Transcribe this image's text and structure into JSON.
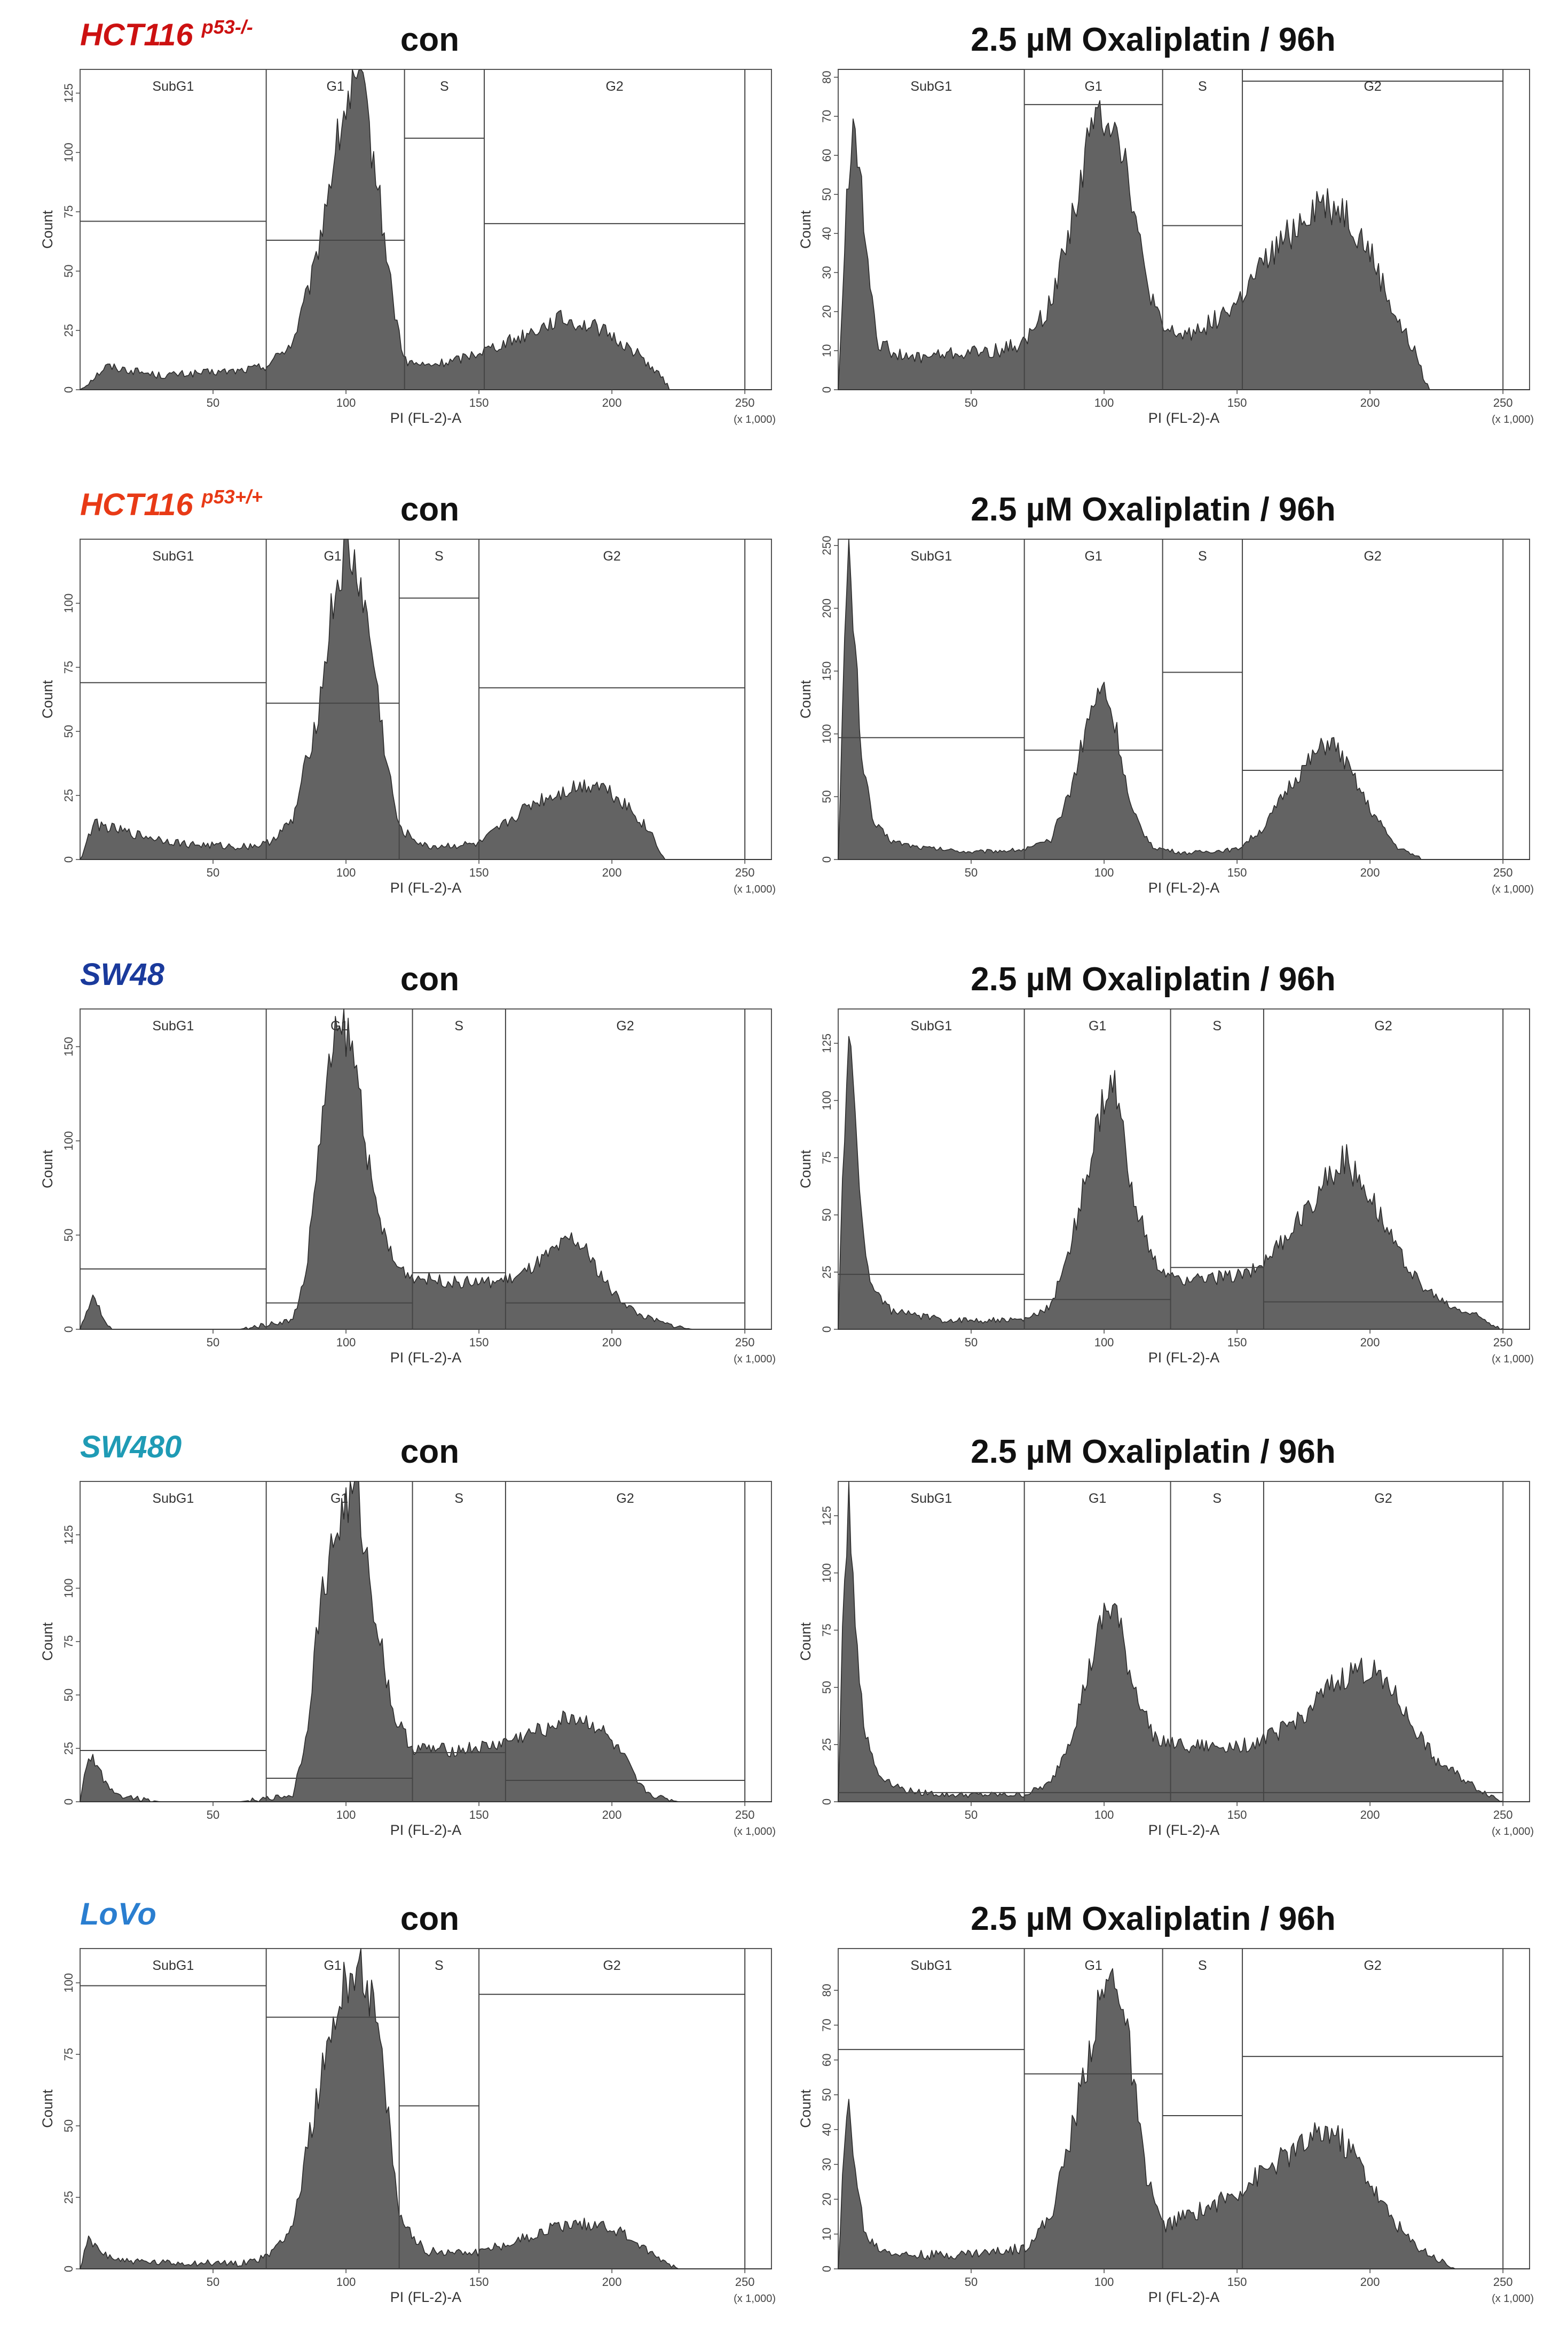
{
  "figure": {
    "title_con": "con",
    "title_treated": "2.5 µM Oxaliplatin / 96h",
    "x_axis_label": "PI (FL-2)-A",
    "y_axis_label": "Count",
    "x_scale_note": "(x 1,000)",
    "gate_labels": [
      "SubG1",
      "G1",
      "S",
      "G2"
    ],
    "histogram_fill": "#636363",
    "gate_line_color": "#444444",
    "rows": [
      {
        "name": "HCT116",
        "superscript": "p53-/-",
        "color": "#cc1111"
      },
      {
        "name": "HCT116",
        "superscript": "p53+/+",
        "color": "#e83a16"
      },
      {
        "name": "SW48",
        "superscript": "",
        "color": "#1a3a9c"
      },
      {
        "name": "SW480",
        "superscript": "",
        "color": "#1f9bb5"
      },
      {
        "name": "LoVo",
        "superscript": "",
        "color": "#2a7ed0"
      }
    ]
  },
  "chart_data": [
    {
      "type": "histogram",
      "row": 0,
      "condition": "con",
      "xlabel": "PI (FL-2)-A",
      "ylabel": "Count",
      "xlim": [
        0,
        260
      ],
      "ylim": [
        0,
        135
      ],
      "x_ticks": [
        50,
        100,
        150,
        200,
        250
      ],
      "y_ticks": [
        0,
        25,
        50,
        75,
        100,
        125
      ],
      "gates": [
        {
          "label": "SubG1",
          "x_range": [
            0,
            70
          ],
          "percent_level": 71
        },
        {
          "label": "G1",
          "x_range": [
            70,
            122
          ],
          "percent_level": 63
        },
        {
          "label": "S",
          "x_range": [
            122,
            152
          ],
          "percent_level": 106
        },
        {
          "label": "G2",
          "x_range": [
            152,
            250
          ],
          "percent_level": 70
        }
      ],
      "profile_x": [
        0,
        10,
        30,
        60,
        70,
        80,
        88,
        95,
        100,
        105,
        108,
        112,
        118,
        122,
        130,
        140,
        150,
        165,
        180,
        195,
        210,
        218,
        222,
        260
      ],
      "profile_y": [
        0,
        10,
        6,
        8,
        10,
        20,
        50,
        95,
        120,
        130,
        115,
        85,
        35,
        12,
        10,
        12,
        16,
        22,
        30,
        26,
        15,
        6,
        0,
        0
      ]
    },
    {
      "type": "histogram",
      "row": 0,
      "condition": "2.5 µM Oxaliplatin / 96h",
      "xlabel": "PI (FL-2)-A",
      "ylabel": "Count",
      "xlim": [
        0,
        260
      ],
      "ylim": [
        0,
        82
      ],
      "x_ticks": [
        50,
        100,
        150,
        200,
        250
      ],
      "y_ticks": [
        0,
        10,
        20,
        30,
        40,
        50,
        60,
        70,
        80
      ],
      "gates": [
        {
          "label": "SubG1",
          "x_range": [
            0,
            70
          ],
          "percent_level": 82
        },
        {
          "label": "G1",
          "x_range": [
            70,
            122
          ],
          "percent_level": 73
        },
        {
          "label": "S",
          "x_range": [
            122,
            152
          ],
          "percent_level": 42
        },
        {
          "label": "G2",
          "x_range": [
            152,
            250
          ],
          "percent_level": 79
        }
      ],
      "profile_x": [
        0,
        3,
        6,
        10,
        15,
        25,
        40,
        60,
        70,
        80,
        90,
        95,
        100,
        105,
        110,
        115,
        122,
        130,
        140,
        150,
        160,
        170,
        180,
        190,
        200,
        210,
        218,
        222,
        260
      ],
      "profile_y": [
        0,
        45,
        72,
        40,
        12,
        8,
        9,
        10,
        12,
        22,
        50,
        66,
        72,
        68,
        52,
        30,
        15,
        14,
        17,
        22,
        32,
        40,
        48,
        46,
        35,
        18,
        8,
        0,
        0
      ]
    },
    {
      "type": "histogram",
      "row": 1,
      "condition": "con",
      "xlabel": "PI (FL-2)-A",
      "ylabel": "Count",
      "xlim": [
        0,
        260
      ],
      "ylim": [
        0,
        125
      ],
      "x_ticks": [
        50,
        100,
        150,
        200,
        250
      ],
      "y_ticks": [
        0,
        25,
        50,
        75,
        100
      ],
      "gates": [
        {
          "label": "SubG1",
          "x_range": [
            0,
            70
          ],
          "percent_level": 69
        },
        {
          "label": "G1",
          "x_range": [
            70,
            120
          ],
          "percent_level": 61
        },
        {
          "label": "S",
          "x_range": [
            120,
            150
          ],
          "percent_level": 102
        },
        {
          "label": "G2",
          "x_range": [
            150,
            250
          ],
          "percent_level": 67
        }
      ],
      "profile_x": [
        0,
        5,
        20,
        40,
        60,
        70,
        80,
        90,
        95,
        100,
        105,
        110,
        115,
        120,
        130,
        150,
        160,
        170,
        185,
        195,
        205,
        215,
        220,
        260
      ],
      "profile_y": [
        0,
        14,
        10,
        6,
        5,
        6,
        15,
        60,
        100,
        120,
        110,
        80,
        40,
        12,
        5,
        6,
        14,
        22,
        28,
        30,
        22,
        10,
        0,
        0
      ]
    },
    {
      "type": "histogram",
      "row": 1,
      "condition": "2.5 µM Oxaliplatin / 96h",
      "xlabel": "PI (FL-2)-A",
      "ylabel": "Count",
      "xlim": [
        0,
        260
      ],
      "ylim": [
        0,
        255
      ],
      "x_ticks": [
        50,
        100,
        150,
        200,
        250
      ],
      "y_ticks": [
        0,
        50,
        100,
        150,
        200,
        250
      ],
      "gates": [
        {
          "label": "SubG1",
          "x_range": [
            0,
            70
          ],
          "percent_level": 97
        },
        {
          "label": "G1",
          "x_range": [
            70,
            122
          ],
          "percent_level": 87
        },
        {
          "label": "S",
          "x_range": [
            122,
            152
          ],
          "percent_level": 149
        },
        {
          "label": "G2",
          "x_range": [
            152,
            250
          ],
          "percent_level": 71
        }
      ],
      "profile_x": [
        0,
        2,
        4,
        6,
        9,
        13,
        20,
        30,
        50,
        70,
        80,
        88,
        95,
        100,
        105,
        110,
        118,
        130,
        150,
        160,
        170,
        180,
        185,
        190,
        200,
        210,
        220,
        260
      ],
      "profile_y": [
        0,
        150,
        245,
        180,
        80,
        30,
        15,
        10,
        6,
        8,
        15,
        60,
        120,
        138,
        100,
        40,
        10,
        5,
        8,
        25,
        60,
        85,
        95,
        80,
        40,
        10,
        0,
        0
      ]
    },
    {
      "type": "histogram",
      "row": 2,
      "condition": "con",
      "xlabel": "PI (FL-2)-A",
      "ylabel": "Count",
      "xlim": [
        0,
        260
      ],
      "ylim": [
        0,
        170
      ],
      "x_ticks": [
        50,
        100,
        150,
        200,
        250
      ],
      "y_ticks": [
        0,
        50,
        100,
        150
      ],
      "gates": [
        {
          "label": "SubG1",
          "x_range": [
            0,
            70
          ],
          "percent_level": 32
        },
        {
          "label": "G1",
          "x_range": [
            70,
            125
          ],
          "percent_level": 14
        },
        {
          "label": "S",
          "x_range": [
            125,
            160
          ],
          "percent_level": 30
        },
        {
          "label": "G2",
          "x_range": [
            160,
            250
          ],
          "percent_level": 14
        }
      ],
      "profile_x": [
        0,
        3,
        5,
        7,
        9,
        12,
        20,
        60,
        80,
        85,
        90,
        95,
        100,
        105,
        110,
        118,
        125,
        140,
        155,
        165,
        175,
        185,
        190,
        200,
        210,
        220,
        230,
        260
      ],
      "profile_y": [
        0,
        10,
        18,
        12,
        4,
        0,
        0,
        0,
        5,
        30,
        100,
        150,
        160,
        130,
        70,
        35,
        28,
        25,
        25,
        28,
        38,
        48,
        42,
        20,
        8,
        3,
        0,
        0
      ]
    },
    {
      "type": "histogram",
      "row": 2,
      "condition": "2.5 µM Oxaliplatin / 96h",
      "xlabel": "PI (FL-2)-A",
      "ylabel": "Count",
      "xlim": [
        0,
        260
      ],
      "ylim": [
        0,
        140
      ],
      "x_ticks": [
        50,
        100,
        150,
        200,
        250
      ],
      "y_ticks": [
        0,
        25,
        50,
        75,
        100,
        125
      ],
      "gates": [
        {
          "label": "SubG1",
          "x_range": [
            0,
            70
          ],
          "percent_level": 24
        },
        {
          "label": "G1",
          "x_range": [
            70,
            125
          ],
          "percent_level": 13
        },
        {
          "label": "S",
          "x_range": [
            125,
            160
          ],
          "percent_level": 27
        },
        {
          "label": "G2",
          "x_range": [
            160,
            250
          ],
          "percent_level": 12
        }
      ],
      "profile_x": [
        0,
        2,
        4,
        8,
        12,
        20,
        40,
        70,
        80,
        88,
        95,
        100,
        104,
        110,
        118,
        125,
        140,
        155,
        165,
        175,
        185,
        190,
        200,
        210,
        220,
        230,
        240,
        250,
        260
      ],
      "profile_y": [
        0,
        80,
        130,
        60,
        20,
        8,
        4,
        4,
        10,
        40,
        75,
        100,
        105,
        65,
        30,
        22,
        22,
        25,
        35,
        50,
        68,
        75,
        60,
        35,
        18,
        10,
        6,
        0,
        0
      ]
    },
    {
      "type": "histogram",
      "row": 3,
      "condition": "con",
      "xlabel": "PI (FL-2)-A",
      "ylabel": "Count",
      "xlim": [
        0,
        260
      ],
      "ylim": [
        0,
        150
      ],
      "x_ticks": [
        50,
        100,
        150,
        200,
        250
      ],
      "y_ticks": [
        0,
        25,
        50,
        75,
        100,
        125
      ],
      "gates": [
        {
          "label": "SubG1",
          "x_range": [
            0,
            70
          ],
          "percent_level": 24
        },
        {
          "label": "G1",
          "x_range": [
            70,
            125
          ],
          "percent_level": 11
        },
        {
          "label": "S",
          "x_range": [
            125,
            160
          ],
          "percent_level": 23
        },
        {
          "label": "G2",
          "x_range": [
            160,
            250
          ],
          "percent_level": 10
        }
      ],
      "profile_x": [
        0,
        3,
        6,
        10,
        15,
        30,
        60,
        80,
        85,
        90,
        95,
        100,
        104,
        110,
        118,
        125,
        140,
        155,
        170,
        185,
        195,
        205,
        210,
        215,
        225,
        260
      ],
      "profile_y": [
        0,
        22,
        18,
        8,
        3,
        0,
        0,
        3,
        30,
        90,
        120,
        140,
        145,
        95,
        40,
        25,
        24,
        26,
        32,
        40,
        35,
        20,
        8,
        3,
        0,
        0
      ]
    },
    {
      "type": "histogram",
      "row": 3,
      "condition": "2.5 µM Oxaliplatin / 96h",
      "xlabel": "PI (FL-2)-A",
      "ylabel": "Count",
      "xlim": [
        0,
        260
      ],
      "ylim": [
        0,
        140
      ],
      "x_ticks": [
        50,
        100,
        150,
        200,
        250
      ],
      "y_ticks": [
        0,
        25,
        50,
        75,
        100,
        125
      ],
      "gates": [
        {
          "label": "SubG1",
          "x_range": [
            0,
            70
          ],
          "percent_level": 4
        },
        {
          "label": "G1",
          "x_range": [
            70,
            125
          ],
          "percent_level": 4
        },
        {
          "label": "S",
          "x_range": [
            125,
            160
          ],
          "percent_level": 4
        },
        {
          "label": "G2",
          "x_range": [
            160,
            250
          ],
          "percent_level": 4
        }
      ],
      "profile_x": [
        0,
        2,
        4,
        7,
        10,
        15,
        25,
        40,
        70,
        80,
        88,
        95,
        100,
        104,
        110,
        118,
        125,
        140,
        155,
        165,
        175,
        185,
        195,
        205,
        215,
        225,
        240,
        250,
        260
      ],
      "profile_y": [
        0,
        90,
        135,
        70,
        30,
        12,
        5,
        3,
        3,
        8,
        30,
        60,
        82,
        85,
        55,
        30,
        25,
        24,
        25,
        30,
        38,
        50,
        58,
        55,
        35,
        18,
        6,
        0,
        0
      ]
    },
    {
      "type": "histogram",
      "row": 4,
      "condition": "con",
      "xlabel": "PI (FL-2)-A",
      "ylabel": "Count",
      "xlim": [
        0,
        260
      ],
      "ylim": [
        0,
        112
      ],
      "x_ticks": [
        50,
        100,
        150,
        200,
        250
      ],
      "y_ticks": [
        0,
        25,
        50,
        75,
        100
      ],
      "gates": [
        {
          "label": "SubG1",
          "x_range": [
            0,
            70
          ],
          "percent_level": 99
        },
        {
          "label": "G1",
          "x_range": [
            70,
            120
          ],
          "percent_level": 88
        },
        {
          "label": "S",
          "x_range": [
            120,
            150
          ],
          "percent_level": 57
        },
        {
          "label": "G2",
          "x_range": [
            150,
            250
          ],
          "percent_level": 96
        }
      ],
      "profile_x": [
        0,
        3,
        8,
        15,
        30,
        60,
        70,
        80,
        88,
        95,
        100,
        105,
        110,
        115,
        120,
        130,
        150,
        165,
        180,
        195,
        205,
        215,
        225,
        260
      ],
      "profile_y": [
        0,
        10,
        6,
        3,
        2,
        2,
        4,
        15,
        55,
        85,
        100,
        108,
        95,
        60,
        18,
        6,
        6,
        10,
        15,
        16,
        12,
        5,
        0,
        0
      ]
    },
    {
      "type": "histogram",
      "row": 4,
      "condition": "2.5 µM Oxaliplatin / 96h",
      "xlabel": "PI (FL-2)-A",
      "ylabel": "Count",
      "xlim": [
        0,
        260
      ],
      "ylim": [
        0,
        92
      ],
      "x_ticks": [
        50,
        100,
        150,
        200,
        250
      ],
      "y_ticks": [
        0,
        10,
        20,
        30,
        40,
        50,
        60,
        70,
        80
      ],
      "gates": [
        {
          "label": "SubG1",
          "x_range": [
            0,
            70
          ],
          "percent_level": 63
        },
        {
          "label": "G1",
          "x_range": [
            70,
            122
          ],
          "percent_level": 56
        },
        {
          "label": "S",
          "x_range": [
            122,
            152
          ],
          "percent_level": 44
        },
        {
          "label": "G2",
          "x_range": [
            152,
            250
          ],
          "percent_level": 61
        }
      ],
      "profile_x": [
        0,
        2,
        4,
        7,
        10,
        15,
        25,
        40,
        60,
        70,
        80,
        88,
        95,
        100,
        105,
        110,
        115,
        122,
        130,
        140,
        150,
        160,
        170,
        180,
        185,
        195,
        205,
        215,
        225,
        232,
        260
      ],
      "profile_y": [
        0,
        30,
        48,
        25,
        10,
        6,
        4,
        4,
        5,
        6,
        15,
        40,
        65,
        80,
        85,
        60,
        30,
        12,
        15,
        18,
        22,
        28,
        33,
        38,
        40,
        32,
        18,
        8,
        3,
        0,
        0
      ]
    }
  ]
}
